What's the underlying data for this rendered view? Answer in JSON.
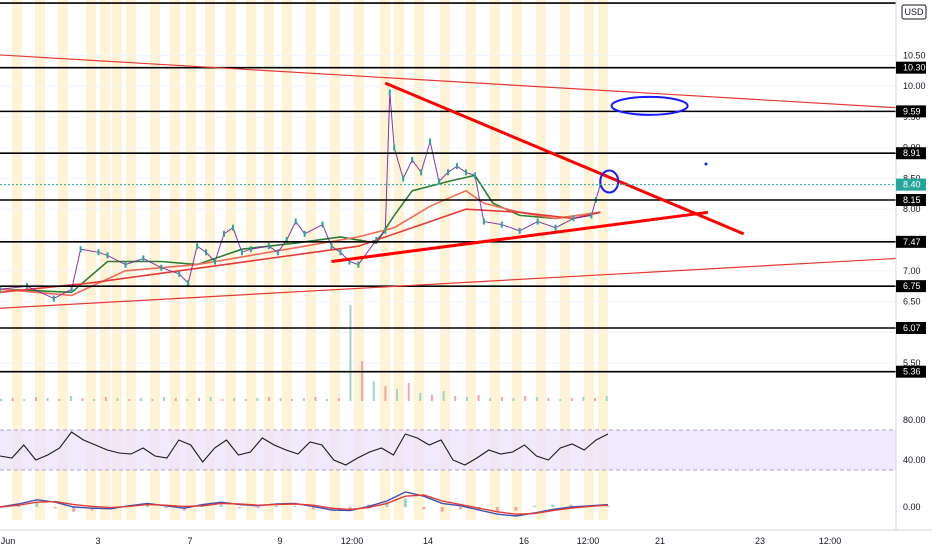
{
  "chart_data": {
    "type": "line",
    "currency": "USD",
    "price_axis": {
      "range": [
        4.9,
        11.4
      ],
      "ticks": [
        "10.50",
        "10.00",
        "9.50",
        "9.00",
        "8.50",
        "8.00",
        "7.50",
        "7.00",
        "6.50",
        "5.50"
      ]
    },
    "horizontal_levels": [
      {
        "value": 11.35,
        "label": ""
      },
      {
        "value": 10.3,
        "label": "10.30"
      },
      {
        "value": 9.59,
        "label": "9.59"
      },
      {
        "value": 8.91,
        "label": "8.91"
      },
      {
        "value": 8.15,
        "label": "8.15"
      },
      {
        "value": 7.47,
        "label": "7.47"
      },
      {
        "value": 6.75,
        "label": "6.75"
      },
      {
        "value": 6.07,
        "label": "6.07"
      },
      {
        "value": 5.36,
        "label": "5.36"
      }
    ],
    "last_price": {
      "value": 8.4,
      "label": "8.40",
      "color": "#26a69a"
    },
    "x_axis_labels": [
      "Jun",
      "3",
      "7",
      "9",
      "12:00",
      "14",
      "16",
      "12:00",
      "21",
      "23",
      "12:00"
    ],
    "x_axis_range": [
      0,
      100
    ],
    "price_series": [
      {
        "x": 0,
        "y": 6.7
      },
      {
        "x": 3,
        "y": 6.75
      },
      {
        "x": 6,
        "y": 6.55
      },
      {
        "x": 8,
        "y": 6.7
      },
      {
        "x": 9,
        "y": 7.35
      },
      {
        "x": 11,
        "y": 7.3
      },
      {
        "x": 12,
        "y": 7.25
      },
      {
        "x": 14,
        "y": 7.1
      },
      {
        "x": 16,
        "y": 7.2
      },
      {
        "x": 18,
        "y": 7.05
      },
      {
        "x": 20,
        "y": 6.95
      },
      {
        "x": 21,
        "y": 6.8
      },
      {
        "x": 22,
        "y": 7.4
      },
      {
        "x": 23,
        "y": 7.3
      },
      {
        "x": 24,
        "y": 7.15
      },
      {
        "x": 25,
        "y": 7.6
      },
      {
        "x": 26,
        "y": 7.7
      },
      {
        "x": 27,
        "y": 7.3
      },
      {
        "x": 28,
        "y": 7.35
      },
      {
        "x": 30,
        "y": 7.4
      },
      {
        "x": 31,
        "y": 7.3
      },
      {
        "x": 32,
        "y": 7.5
      },
      {
        "x": 33,
        "y": 7.8
      },
      {
        "x": 34,
        "y": 7.6
      },
      {
        "x": 36,
        "y": 7.75
      },
      {
        "x": 37,
        "y": 7.4
      },
      {
        "x": 38,
        "y": 7.3
      },
      {
        "x": 39,
        "y": 7.15
      },
      {
        "x": 40,
        "y": 7.1
      },
      {
        "x": 42,
        "y": 7.5
      },
      {
        "x": 43,
        "y": 7.65
      },
      {
        "x": 43.5,
        "y": 9.9
      },
      {
        "x": 44,
        "y": 9.0
      },
      {
        "x": 45,
        "y": 8.5
      },
      {
        "x": 46,
        "y": 8.8
      },
      {
        "x": 47,
        "y": 8.6
      },
      {
        "x": 48,
        "y": 9.1
      },
      {
        "x": 49,
        "y": 8.45
      },
      {
        "x": 50,
        "y": 8.6
      },
      {
        "x": 51,
        "y": 8.7
      },
      {
        "x": 52,
        "y": 8.6
      },
      {
        "x": 53,
        "y": 8.55
      },
      {
        "x": 54,
        "y": 7.8
      },
      {
        "x": 56,
        "y": 7.75
      },
      {
        "x": 58,
        "y": 7.65
      },
      {
        "x": 60,
        "y": 7.8
      },
      {
        "x": 62,
        "y": 7.7
      },
      {
        "x": 64,
        "y": 7.85
      },
      {
        "x": 66,
        "y": 7.9
      },
      {
        "x": 66.5,
        "y": 8.15
      },
      {
        "x": 67,
        "y": 8.4
      }
    ],
    "moving_averages": [
      {
        "color": "#2e7d32",
        "points": [
          {
            "x": 0,
            "y": 6.7
          },
          {
            "x": 8,
            "y": 6.65
          },
          {
            "x": 12,
            "y": 7.15
          },
          {
            "x": 18,
            "y": 7.15
          },
          {
            "x": 22,
            "y": 7.1
          },
          {
            "x": 27,
            "y": 7.35
          },
          {
            "x": 33,
            "y": 7.45
          },
          {
            "x": 38,
            "y": 7.55
          },
          {
            "x": 42,
            "y": 7.45
          },
          {
            "x": 44,
            "y": 7.9
          },
          {
            "x": 46,
            "y": 8.3
          },
          {
            "x": 50,
            "y": 8.45
          },
          {
            "x": 53,
            "y": 8.55
          },
          {
            "x": 55,
            "y": 8.1
          },
          {
            "x": 58,
            "y": 7.9
          },
          {
            "x": 62,
            "y": 7.85
          },
          {
            "x": 67,
            "y": 7.95
          }
        ]
      },
      {
        "color": "#ef6c57",
        "points": [
          {
            "x": 0,
            "y": 6.7
          },
          {
            "x": 8,
            "y": 6.6
          },
          {
            "x": 14,
            "y": 7.0
          },
          {
            "x": 22,
            "y": 7.1
          },
          {
            "x": 28,
            "y": 7.25
          },
          {
            "x": 34,
            "y": 7.4
          },
          {
            "x": 40,
            "y": 7.55
          },
          {
            "x": 44,
            "y": 7.7
          },
          {
            "x": 48,
            "y": 8.05
          },
          {
            "x": 52,
            "y": 8.3
          },
          {
            "x": 54,
            "y": 8.1
          },
          {
            "x": 58,
            "y": 7.95
          },
          {
            "x": 62,
            "y": 7.85
          },
          {
            "x": 67,
            "y": 7.95
          }
        ]
      },
      {
        "color": "#e53935",
        "points": [
          {
            "x": 0,
            "y": 6.65
          },
          {
            "x": 10,
            "y": 6.8
          },
          {
            "x": 20,
            "y": 7.0
          },
          {
            "x": 30,
            "y": 7.2
          },
          {
            "x": 40,
            "y": 7.4
          },
          {
            "x": 46,
            "y": 7.7
          },
          {
            "x": 52,
            "y": 8.0
          },
          {
            "x": 58,
            "y": 7.95
          },
          {
            "x": 64,
            "y": 7.85
          },
          {
            "x": 67,
            "y": 7.95
          }
        ]
      }
    ],
    "trendlines": [
      {
        "from": {
          "x": -5,
          "y": 10.55
        },
        "to": {
          "x": 100,
          "y": 9.65
        },
        "color": "#e53935"
      },
      {
        "from": {
          "x": -5,
          "y": 6.35
        },
        "to": {
          "x": 100,
          "y": 7.2
        },
        "color": "#e53935"
      },
      {
        "from": {
          "x": 43,
          "y": 10.05
        },
        "to": {
          "x": 83,
          "y": 7.6
        },
        "color": "#ff0000"
      },
      {
        "from": {
          "x": 37,
          "y": 7.15
        },
        "to": {
          "x": 79,
          "y": 7.95
        },
        "color": "#ff0000"
      }
    ],
    "annotations": [
      {
        "type": "ellipse",
        "x": 72.5,
        "y": 9.68,
        "color": "#1a1aff"
      },
      {
        "type": "ellipse",
        "x": 68,
        "y": 8.45,
        "color": "#1a1aff"
      }
    ],
    "rsi": {
      "ticks": [
        "80.00",
        "40.00"
      ],
      "band": [
        30,
        70
      ],
      "values": [
        44,
        42,
        55,
        40,
        45,
        52,
        68,
        60,
        55,
        50,
        47,
        46,
        52,
        44,
        42,
        60,
        55,
        38,
        52,
        60,
        45,
        48,
        62,
        55,
        50,
        46,
        58,
        55,
        40,
        35,
        42,
        48,
        52,
        45,
        66,
        62,
        55,
        60,
        40,
        35,
        42,
        50,
        46,
        48,
        55,
        44,
        40,
        52,
        56,
        50,
        60,
        66
      ]
    },
    "macd": {
      "ticks": [
        "0.00"
      ],
      "macd_line": [
        0,
        0.05,
        0.12,
        0.08,
        0,
        -0.02,
        -0.03,
        0.02,
        0.06,
        0.02,
        -0.02,
        0.04,
        0.08,
        0.04,
        0.02,
        0.05,
        0.06,
        0.01,
        -0.05,
        -0.06,
        0.01,
        0.1,
        0.25,
        0.18,
        0.06,
        0.02,
        -0.05,
        -0.12,
        -0.15,
        -0.1,
        -0.04,
        0,
        0.02,
        0.04
      ],
      "signal_line": [
        0,
        0.03,
        0.08,
        0.09,
        0.04,
        0.01,
        -0.01,
        0.01,
        0.04,
        0.03,
        0.01,
        0.02,
        0.06,
        0.05,
        0.03,
        0.04,
        0.05,
        0.03,
        -0.02,
        -0.04,
        -0.01,
        0.06,
        0.18,
        0.2,
        0.1,
        0.04,
        -0.02,
        -0.08,
        -0.12,
        -0.11,
        -0.06,
        -0.02,
        0.01,
        0.03
      ]
    }
  }
}
